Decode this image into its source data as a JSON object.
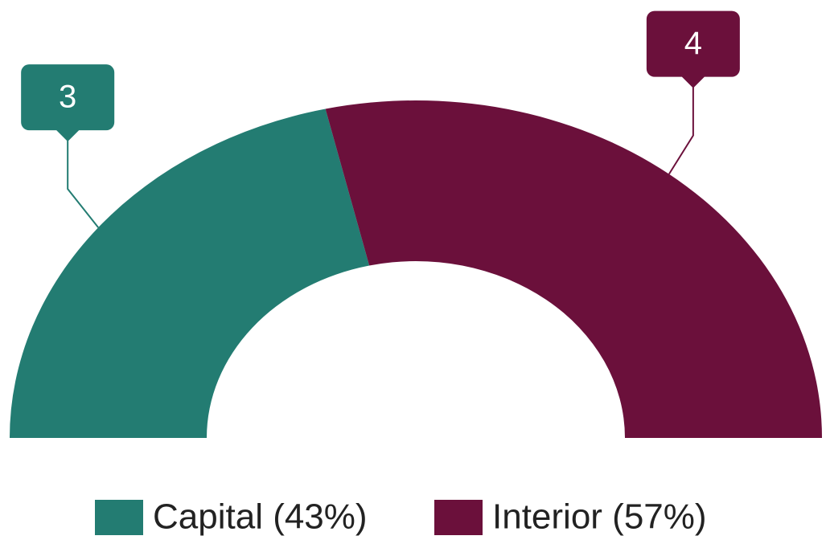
{
  "chart_data": {
    "type": "semi-donut",
    "categories": [
      "Capital (43%)",
      "Interior (57%)"
    ],
    "values": [
      3,
      4
    ],
    "colors": [
      "#237c72",
      "#6b103b"
    ],
    "legend": "bottom"
  }
}
